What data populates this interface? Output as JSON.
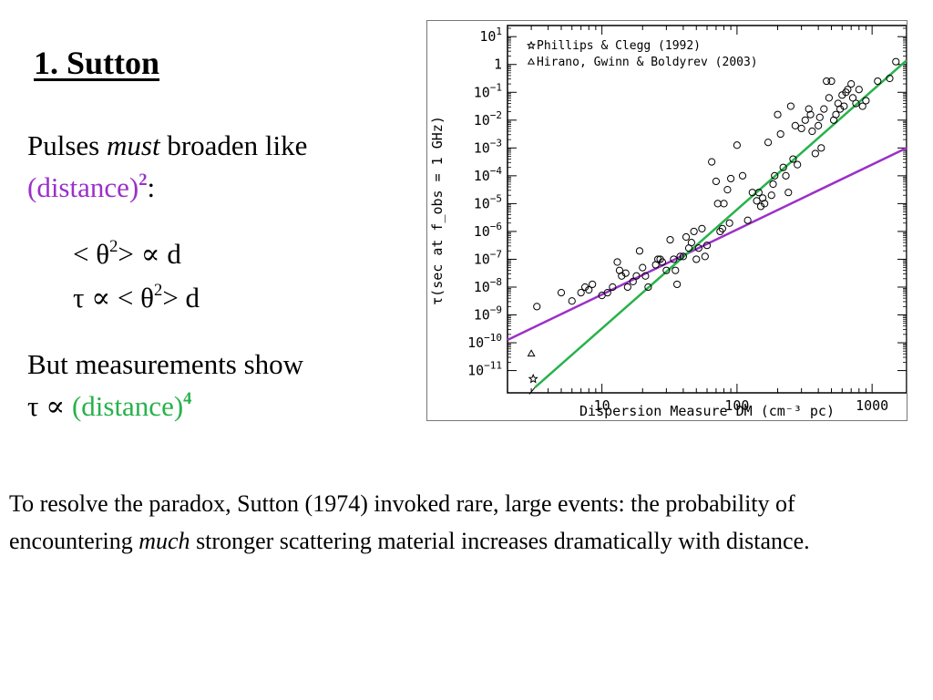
{
  "slide": {
    "title": "1. Sutton",
    "pulses_prefix": "Pulses ",
    "pulses_emph": "must",
    "pulses_suffix": " broaden like",
    "dist_sq": "(distance)",
    "dist_sq_exp": "2",
    "dist_sq_colon": ":",
    "eq1_a": "< θ",
    "eq1_sup": "2",
    "eq1_b": "> ∝ d",
    "eq2_a": "τ ∝ < θ",
    "eq2_sup": "2",
    "eq2_b": "> d",
    "but_line": "But measurements show",
    "tau_prop": "τ ∝ ",
    "dist_4": "(distance)",
    "dist_4_exp": "4",
    "caption_a": "To resolve the paradox, Sutton (1974) invoked rare, large events: the probability of encountering ",
    "caption_emph": "much",
    "caption_b": " stronger scattering material increases dramatically with distance."
  },
  "colors": {
    "purple": "#9b30c8",
    "green": "#27b24a"
  },
  "chart_data": {
    "type": "scatter",
    "title": "",
    "xlabel": "Dispersion Measure DM (cm⁻³ pc)",
    "ylabel": "τ(sec at f_obs = 1 GHz)",
    "xscale": "log",
    "yscale": "log",
    "xlim": [
      2,
      1800
    ],
    "ylim_exponent": [
      -11.8,
      1.4
    ],
    "x_ticks": [
      10,
      100,
      1000
    ],
    "x_tick_labels": [
      "10",
      "100",
      "1000"
    ],
    "y_ticks_exponent": [
      1,
      0,
      -1,
      -2,
      -3,
      -4,
      -5,
      -6,
      -7,
      -8,
      -9,
      -10,
      -11
    ],
    "legend_position": "top-left",
    "legend": [
      {
        "symbol": "star",
        "label": "Phillips & Clegg (1992)"
      },
      {
        "symbol": "triangle",
        "label": "Hirano, Gwinn & Boldyrev (2003)"
      }
    ],
    "lines": [
      {
        "color": "#9b30c8",
        "points": [
          [
            2,
            -9.9
          ],
          [
            1800,
            -3.0
          ]
        ]
      },
      {
        "color": "#27b24a",
        "points": [
          [
            3.2,
            -11.6
          ],
          [
            1800,
            0.15
          ]
        ]
      }
    ],
    "star_points": [
      [
        3.1,
        -11.3
      ]
    ],
    "triangle_points": [
      [
        3.0,
        -10.4
      ]
    ],
    "points": [
      [
        3.3,
        -8.7
      ],
      [
        5,
        -8.2
      ],
      [
        6,
        -8.5
      ],
      [
        7,
        -8.2
      ],
      [
        7.5,
        -8.0
      ],
      [
        8,
        -8.1
      ],
      [
        8.5,
        -7.9
      ],
      [
        10,
        -8.3
      ],
      [
        11,
        -8.2
      ],
      [
        12,
        -8.0
      ],
      [
        13,
        -7.1
      ],
      [
        13.5,
        -7.4
      ],
      [
        14,
        -7.6
      ],
      [
        15,
        -7.5
      ],
      [
        15.5,
        -8.0
      ],
      [
        17,
        -7.8
      ],
      [
        18,
        -7.6
      ],
      [
        19,
        -6.7
      ],
      [
        20,
        -7.3
      ],
      [
        21,
        -7.6
      ],
      [
        22,
        -8.0
      ],
      [
        25,
        -7.2
      ],
      [
        26,
        -7.0
      ],
      [
        27,
        -7.0
      ],
      [
        28,
        -7.1
      ],
      [
        30,
        -7.4
      ],
      [
        32,
        -6.3
      ],
      [
        34,
        -7.0
      ],
      [
        35,
        -7.4
      ],
      [
        36,
        -7.9
      ],
      [
        38,
        -6.9
      ],
      [
        40,
        -6.9
      ],
      [
        42,
        -6.2
      ],
      [
        44,
        -6.6
      ],
      [
        46,
        -6.4
      ],
      [
        48,
        -6.0
      ],
      [
        50,
        -7.0
      ],
      [
        52,
        -6.6
      ],
      [
        55,
        -5.9
      ],
      [
        58,
        -6.9
      ],
      [
        60,
        -6.5
      ],
      [
        65,
        -3.5
      ],
      [
        70,
        -4.2
      ],
      [
        72,
        -5.0
      ],
      [
        75,
        -6.0
      ],
      [
        78,
        -5.9
      ],
      [
        80,
        -5.0
      ],
      [
        85,
        -4.5
      ],
      [
        88,
        -5.7
      ],
      [
        90,
        -4.1
      ],
      [
        100,
        -2.9
      ],
      [
        110,
        -4.0
      ],
      [
        120,
        -5.6
      ],
      [
        130,
        -4.6
      ],
      [
        140,
        -4.9
      ],
      [
        145,
        -4.6
      ],
      [
        150,
        -5.1
      ],
      [
        155,
        -4.8
      ],
      [
        160,
        -5.0
      ],
      [
        170,
        -2.8
      ],
      [
        180,
        -4.7
      ],
      [
        185,
        -4.3
      ],
      [
        190,
        -4.0
      ],
      [
        200,
        -1.8
      ],
      [
        210,
        -2.5
      ],
      [
        220,
        -3.7
      ],
      [
        230,
        -4.0
      ],
      [
        240,
        -4.6
      ],
      [
        250,
        -1.5
      ],
      [
        260,
        -3.4
      ],
      [
        270,
        -2.2
      ],
      [
        280,
        -3.6
      ],
      [
        300,
        -2.3
      ],
      [
        320,
        -2.0
      ],
      [
        340,
        -1.6
      ],
      [
        350,
        -1.8
      ],
      [
        360,
        -2.4
      ],
      [
        380,
        -3.2
      ],
      [
        400,
        -2.2
      ],
      [
        410,
        -1.9
      ],
      [
        420,
        -3.0
      ],
      [
        440,
        -1.6
      ],
      [
        460,
        -0.6
      ],
      [
        480,
        -1.2
      ],
      [
        500,
        -0.6
      ],
      [
        520,
        -2.0
      ],
      [
        540,
        -1.8
      ],
      [
        560,
        -1.4
      ],
      [
        580,
        -1.6
      ],
      [
        600,
        -1.1
      ],
      [
        620,
        -1.5
      ],
      [
        640,
        -1.0
      ],
      [
        660,
        -0.9
      ],
      [
        700,
        -0.7
      ],
      [
        720,
        -1.2
      ],
      [
        760,
        -1.4
      ],
      [
        800,
        -0.9
      ],
      [
        850,
        -1.5
      ],
      [
        900,
        -1.3
      ],
      [
        1100,
        -0.6
      ],
      [
        1350,
        -0.5
      ],
      [
        1500,
        0.1
      ]
    ]
  }
}
